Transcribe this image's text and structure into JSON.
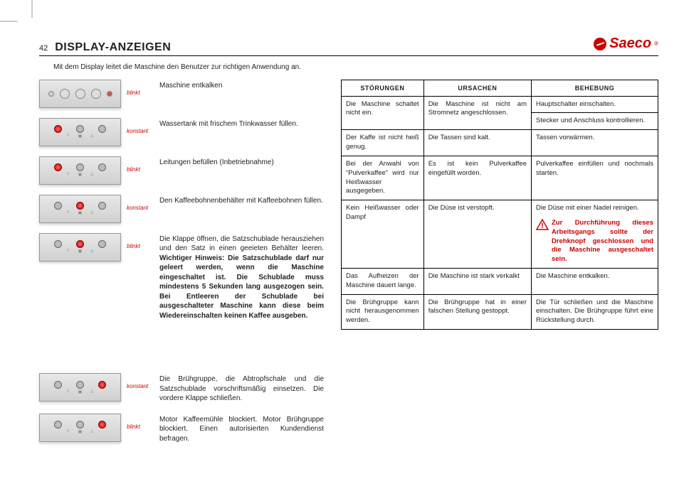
{
  "page_number": "42",
  "title": "DISPLAY-ANZEIGEN",
  "logo_text": "Saeco",
  "intro": "Mit dem Display leitet die Maschine den Benutzer zur richtigen Anwendung an.",
  "panel_type_top": "top",
  "panel_type_leds": "leds",
  "indicators": [
    {
      "leds": [
        0,
        0,
        0
      ],
      "panel": "top",
      "status": "blinkt",
      "desc": "Maschine entkalken"
    },
    {
      "leds": [
        1,
        0,
        0
      ],
      "panel": "leds",
      "status": "konstant",
      "desc": "Wassertank mit frischem Trinkwasser füllen."
    },
    {
      "leds": [
        1,
        0,
        0
      ],
      "panel": "leds",
      "status": "blinkt",
      "desc": "Leitungen befüllen (Inbetriebnahme)"
    },
    {
      "leds": [
        0,
        1,
        0
      ],
      "panel": "leds",
      "status": "konstant",
      "desc": "Den Kaffeebohnenbehälter mit Kaffeeboh­nen füllen."
    },
    {
      "leds": [
        0,
        1,
        0
      ],
      "panel": "leds",
      "status": "blinkt",
      "desc": "Die Klappe öffnen, die Satzschublade he­rausziehen und den Satz in einen geeieten Behälter leeren.\n",
      "bold": "Wichtiger Hinweis: Die Satzschublade darf nur geleert werden, wenn die Ma­schine eingeschaltet ist. Die Schublade muss mindestens 5 Sekunden lang ausgezogen sein. Bei Entleeren der Schublade bei ausgeschalteter Maschi­ne kann diese beim Wiedereinschalten keinen Kaffee ausgeben."
    },
    {
      "leds": [
        0,
        0,
        1
      ],
      "panel": "leds",
      "status": "konstant",
      "desc": "Die Brühgruppe, die Abtropfschale und die Satzschublade vorschriftsmäßig einsetzen. Die vordere Klappe schließen.",
      "gap": true
    },
    {
      "leds": [
        0,
        0,
        1
      ],
      "panel": "leds",
      "status": "blinkt",
      "desc": "Motor Kaffeemühle blockiert.\nMotor Brühgruppe blockiert.\nEinen autorisierten Kundendienst befragen."
    }
  ],
  "table": {
    "headers": [
      "STÖRUNGEN",
      "URSACHEN",
      "BEHEBUNG"
    ],
    "rows": [
      {
        "c1": "Die Maschine schaltet nicht ein.",
        "c2": "Die Maschine ist nicht am Stromnetz angeschlossen.",
        "c3": "Hauptschalter einschalten.",
        "c1rowspan": 2,
        "c2rowspan": 2
      },
      {
        "c3": "Stecker und Anschluss kontrollieren."
      },
      {
        "c1": "Der Kaffe ist nicht heiß genug.",
        "c2": "Die Tassen sind kalt.",
        "c3": "Tassen vorwärmen."
      },
      {
        "c1": "Bei der Anwahl von “Pulverkaffee” wird nur Heißwasser ausgegeben.",
        "c2": "Es ist kein Pulverkaffee eingefüllt worden.",
        "c3": "Pulverkaffee einfüllen und nochmals starten."
      },
      {
        "c1": "Kein Heißwasser oder Dampf",
        "c2": "Die Düse ist verstopft.",
        "c3": "Die Düse mit einer Nadel reinigen.",
        "warn": "Zur Durchführung dieses Arbeitsgangs sollte der Drehknopf gesch­lossen und die Maschine ausgeschaltet sein."
      },
      {
        "c1": "Das Aufheizen der Maschine dauert lange.",
        "c2": "Die Maschine ist stark verkalkt",
        "c3": "Die Maschine entkalken."
      },
      {
        "c1": "Die Brühgruppe kann nicht herau­sgenommen werden.",
        "c2": "Die Brühgruppe hat in einer falschen Stellung gestoppt.",
        "c3": "Die Tür schließen und die Maschine einschalten. Die Brühgruppe führt eine Rückstellung durch."
      }
    ]
  }
}
